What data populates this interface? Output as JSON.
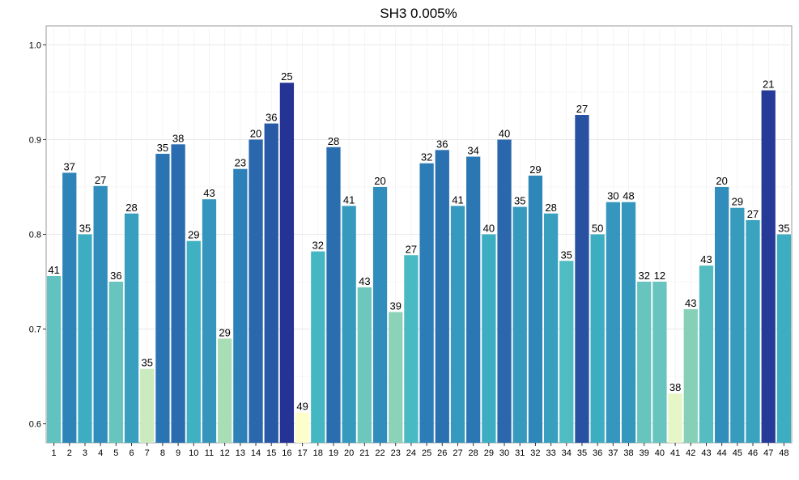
{
  "chart_data": {
    "type": "bar",
    "title": "SH3 0.005%",
    "xlabel": "",
    "ylabel": "",
    "ylim": [
      0.58,
      1.02
    ],
    "yticks": [
      0.6,
      0.7,
      0.8,
      0.9,
      1.0
    ],
    "ytick_labels": [
      "0.6",
      "0.7",
      "0.8",
      "0.9",
      "1.0"
    ],
    "grid": true,
    "categories": [
      "1",
      "2",
      "3",
      "4",
      "5",
      "6",
      "7",
      "8",
      "9",
      "10",
      "11",
      "12",
      "13",
      "14",
      "15",
      "16",
      "17",
      "18",
      "19",
      "20",
      "21",
      "22",
      "23",
      "24",
      "25",
      "26",
      "27",
      "28",
      "29",
      "30",
      "31",
      "32",
      "33",
      "34",
      "35",
      "36",
      "37",
      "38",
      "39",
      "40",
      "41",
      "42",
      "43",
      "44",
      "45",
      "46",
      "47",
      "48"
    ],
    "values": [
      0.756,
      0.865,
      0.8,
      0.851,
      0.75,
      0.822,
      0.658,
      0.885,
      0.895,
      0.793,
      0.837,
      0.69,
      0.869,
      0.9,
      0.917,
      0.96,
      0.612,
      0.782,
      0.892,
      0.83,
      0.744,
      0.85,
      0.718,
      0.778,
      0.875,
      0.889,
      0.83,
      0.882,
      0.8,
      0.9,
      0.829,
      0.862,
      0.822,
      0.772,
      0.926,
      0.8,
      0.834,
      0.834,
      0.75,
      0.75,
      0.632,
      0.721,
      0.767,
      0.85,
      0.828,
      0.815,
      0.952,
      0.8
    ],
    "bar_labels": [
      "41",
      "37",
      "35",
      "27",
      "36",
      "28",
      "35",
      "35",
      "38",
      "29",
      "43",
      "29",
      "23",
      "20",
      "36",
      "25",
      "49",
      "32",
      "28",
      "41",
      "43",
      "20",
      "39",
      "27",
      "32",
      "36",
      "41",
      "34",
      "40",
      "40",
      "35",
      "29",
      "28",
      "35",
      "27",
      "50",
      "30",
      "48",
      "32",
      "12",
      "38",
      "43",
      "43",
      "20",
      "29",
      "27",
      "21",
      "35"
    ],
    "color_scale": {
      "domain": [
        0.61,
        0.96
      ],
      "colors": [
        "#ffffcc",
        "#a1dab4",
        "#41b6c4",
        "#2c7fb8",
        "#253494"
      ]
    }
  }
}
